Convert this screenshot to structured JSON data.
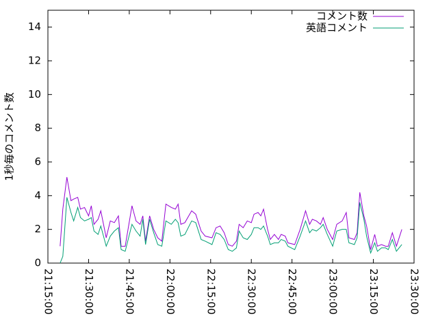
{
  "chart_data": {
    "type": "line",
    "ylabel": "1秒毎のコメント数",
    "x": [
      "21:19:30",
      "21:20:30",
      "21:22:00",
      "21:23:30",
      "21:24:30",
      "21:26:00",
      "21:27:00",
      "21:28:30",
      "21:30:00",
      "21:31:00",
      "21:32:00",
      "21:33:30",
      "21:34:30",
      "21:36:30",
      "21:38:00",
      "21:39:30",
      "21:41:00",
      "21:42:00",
      "21:43:30",
      "21:46:00",
      "21:47:30",
      "21:49:00",
      "21:50:00",
      "21:51:00",
      "21:52:30",
      "21:54:00",
      "21:55:30",
      "21:57:00",
      "21:58:30",
      "22:00:30",
      "22:02:00",
      "22:03:00",
      "22:04:00",
      "22:05:30",
      "22:08:00",
      "22:09:30",
      "22:11:30",
      "22:13:00",
      "22:15:30",
      "22:17:00",
      "22:18:30",
      "22:20:00",
      "22:21:30",
      "22:23:00",
      "22:24:30",
      "22:25:30",
      "22:27:00",
      "22:28:30",
      "22:30:00",
      "22:31:00",
      "22:32:30",
      "22:33:30",
      "22:34:30",
      "22:36:00",
      "22:37:00",
      "22:38:30",
      "22:40:00",
      "22:41:00",
      "22:42:30",
      "22:43:30",
      "22:46:00",
      "22:48:00",
      "22:50:00",
      "22:51:30",
      "22:52:30",
      "22:54:00",
      "22:55:30",
      "22:56:30",
      "22:58:00",
      "23:00:00",
      "23:01:30",
      "23:03:30",
      "23:05:00",
      "23:06:00",
      "23:08:00",
      "23:09:00",
      "23:10:00",
      "23:11:30",
      "23:12:30",
      "23:14:00",
      "23:15:30",
      "23:16:30",
      "23:18:00",
      "23:19:30",
      "23:20:30",
      "23:22:00",
      "23:23:30",
      "23:25:30"
    ],
    "series": [
      {
        "name": "コメント数",
        "color": "#9400d3",
        "values": [
          1.0,
          3.2,
          5.1,
          3.7,
          3.8,
          3.9,
          3.2,
          3.3,
          2.8,
          3.4,
          2.3,
          2.6,
          3.1,
          1.5,
          2.5,
          2.4,
          2.8,
          1.0,
          1.0,
          3.4,
          2.5,
          2.3,
          2.8,
          1.3,
          2.8,
          2.0,
          1.5,
          1.3,
          3.5,
          3.3,
          3.2,
          3.5,
          2.3,
          2.4,
          3.1,
          2.9,
          1.9,
          1.6,
          1.5,
          2.1,
          2.2,
          1.8,
          1.1,
          1.0,
          1.3,
          2.3,
          2.1,
          2.5,
          2.4,
          2.9,
          3.0,
          2.8,
          3.2,
          2.0,
          1.4,
          1.7,
          1.4,
          1.7,
          1.6,
          1.2,
          1.1,
          2.0,
          3.1,
          2.3,
          2.6,
          2.5,
          2.3,
          2.7,
          2.0,
          1.4,
          2.3,
          2.5,
          3.0,
          1.5,
          1.4,
          1.8,
          4.2,
          2.8,
          2.2,
          0.8,
          1.7,
          1.0,
          1.1,
          1.0,
          1.0,
          1.8,
          1.0,
          2.0
        ]
      },
      {
        "name": "英語コメント",
        "color": "#009e73",
        "values": [
          0.0,
          0.4,
          3.9,
          3.0,
          2.5,
          3.3,
          2.7,
          2.5,
          2.6,
          2.7,
          1.9,
          1.7,
          2.2,
          1.0,
          1.6,
          1.9,
          2.1,
          0.8,
          0.7,
          2.3,
          1.9,
          1.6,
          2.6,
          1.1,
          2.6,
          1.8,
          1.1,
          1.0,
          2.5,
          2.3,
          2.6,
          2.4,
          1.6,
          1.7,
          2.5,
          2.4,
          1.4,
          1.3,
          1.1,
          1.8,
          1.7,
          1.4,
          0.8,
          0.7,
          0.9,
          1.9,
          1.5,
          1.4,
          1.7,
          2.1,
          2.1,
          2.0,
          2.2,
          1.6,
          1.1,
          1.2,
          1.2,
          1.4,
          1.3,
          1.0,
          0.8,
          1.6,
          2.5,
          1.8,
          2.0,
          1.9,
          2.1,
          2.3,
          1.7,
          1.0,
          1.9,
          2.0,
          2.0,
          1.2,
          1.1,
          1.5,
          3.6,
          2.6,
          1.6,
          0.6,
          1.2,
          0.7,
          0.9,
          0.9,
          0.8,
          1.4,
          0.7,
          1.1
        ]
      }
    ],
    "xlim": [
      "21:15:00",
      "23:30:00"
    ],
    "xticks": [
      "21:15:00",
      "21:30:00",
      "21:45:00",
      "22:00:00",
      "22:15:00",
      "22:30:00",
      "22:45:00",
      "23:00:00",
      "23:15:00",
      "23:30:00"
    ],
    "ylim": [
      0,
      15
    ],
    "yticks": [
      0,
      2,
      4,
      6,
      8,
      10,
      12,
      14
    ],
    "legend": "top-right"
  }
}
